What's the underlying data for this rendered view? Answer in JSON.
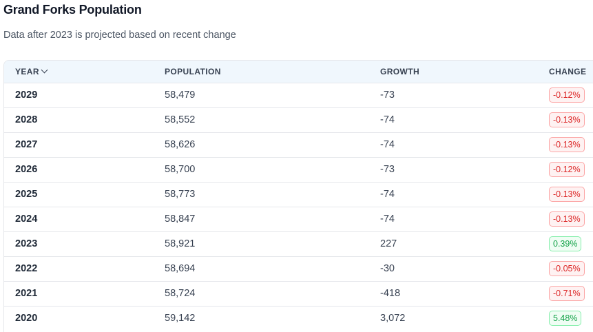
{
  "page": {
    "title": "Grand Forks Population",
    "subtitle": "Data after 2023 is projected based on recent change"
  },
  "table": {
    "headers": {
      "year": "YEAR",
      "population": "POPULATION",
      "growth": "GROWTH",
      "change": "CHANGE"
    },
    "sort_icon": "chevron-down-icon",
    "colors": {
      "negative": "#dc2626",
      "positive": "#16a34a"
    },
    "rows": [
      {
        "year": "2029",
        "population": "58,479",
        "growth": "-73",
        "change": "-0.12%",
        "trend": "neg"
      },
      {
        "year": "2028",
        "population": "58,552",
        "growth": "-74",
        "change": "-0.13%",
        "trend": "neg"
      },
      {
        "year": "2027",
        "population": "58,626",
        "growth": "-74",
        "change": "-0.13%",
        "trend": "neg"
      },
      {
        "year": "2026",
        "population": "58,700",
        "growth": "-73",
        "change": "-0.12%",
        "trend": "neg"
      },
      {
        "year": "2025",
        "population": "58,773",
        "growth": "-74",
        "change": "-0.13%",
        "trend": "neg"
      },
      {
        "year": "2024",
        "population": "58,847",
        "growth": "-74",
        "change": "-0.13%",
        "trend": "neg"
      },
      {
        "year": "2023",
        "population": "58,921",
        "growth": "227",
        "change": "0.39%",
        "trend": "pos"
      },
      {
        "year": "2022",
        "population": "58,694",
        "growth": "-30",
        "change": "-0.05%",
        "trend": "neg"
      },
      {
        "year": "2021",
        "population": "58,724",
        "growth": "-418",
        "change": "-0.71%",
        "trend": "neg"
      },
      {
        "year": "2020",
        "population": "59,142",
        "growth": "3,072",
        "change": "5.48%",
        "trend": "pos"
      }
    ]
  }
}
